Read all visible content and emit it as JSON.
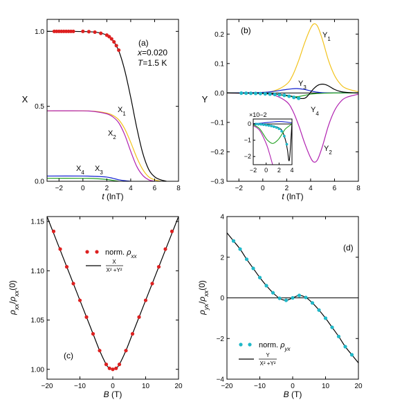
{
  "chart_data": [
    {
      "panel": "(a)",
      "type": "line",
      "xlabel": "t (lnT)",
      "ylabel": "X",
      "xlim": [
        -3,
        8
      ],
      "ylim": [
        0,
        1.08
      ],
      "xticks": [
        -2,
        0,
        2,
        4,
        6,
        8
      ],
      "yticks": [
        0.0,
        0.5,
        1.0
      ],
      "annotations": [
        "x=0.020",
        "T=1.5 K"
      ],
      "series": [
        {
          "name": "X",
          "color": "#000000",
          "x": [
            -3,
            -1,
            1,
            2,
            2.5,
            3,
            3.5,
            4,
            4.5,
            5,
            5.5,
            6,
            6.5,
            7
          ],
          "y": [
            1.0,
            1.0,
            0.995,
            0.975,
            0.94,
            0.87,
            0.74,
            0.56,
            0.36,
            0.19,
            0.08,
            0.03,
            0.01,
            0.0
          ]
        },
        {
          "name": "X1",
          "color": "#f2c21a",
          "x": [
            -3,
            0,
            1,
            2,
            2.5,
            3,
            3.5,
            4,
            4.5,
            5,
            5.5,
            6,
            6.5
          ],
          "y": [
            0.47,
            0.47,
            0.467,
            0.455,
            0.44,
            0.41,
            0.35,
            0.26,
            0.16,
            0.08,
            0.03,
            0.01,
            0.0
          ]
        },
        {
          "name": "X2",
          "color": "#b020b0",
          "x": [
            -3,
            0,
            1,
            2,
            2.5,
            3,
            3.5,
            4,
            4.5,
            5,
            5.5,
            6
          ],
          "y": [
            0.47,
            0.47,
            0.465,
            0.45,
            0.43,
            0.39,
            0.31,
            0.2,
            0.1,
            0.04,
            0.01,
            0.0
          ]
        },
        {
          "name": "X3",
          "color": "#1020d0",
          "x": [
            -3,
            0,
            1,
            2,
            2.5,
            3,
            3.5,
            4
          ],
          "y": [
            0.035,
            0.035,
            0.033,
            0.028,
            0.02,
            0.01,
            0.004,
            0.0
          ]
        },
        {
          "name": "X4",
          "color": "#20a020",
          "x": [
            -3,
            0,
            1,
            2,
            2.5,
            3
          ],
          "y": [
            0.02,
            0.02,
            0.018,
            0.012,
            0.006,
            0.0
          ]
        }
      ],
      "points": {
        "name": "data",
        "color": "#dd2020",
        "x": [
          -2.4,
          -2.2,
          -2.0,
          -1.8,
          -1.6,
          -1.4,
          -1.2,
          -1.0,
          -0.8,
          0.0,
          0.5,
          1.0,
          1.5,
          2.0,
          2.2,
          2.4,
          2.6,
          2.8,
          3.0
        ],
        "y": [
          1.0,
          1.0,
          1.0,
          1.0,
          1.0,
          1.0,
          1.0,
          1.0,
          1.0,
          1.0,
          0.998,
          0.995,
          0.987,
          0.975,
          0.965,
          0.95,
          0.93,
          0.905,
          0.875
        ]
      },
      "labels": {
        "X1": "X1",
        "X2": "X2",
        "X3": "X3",
        "X4": "X4"
      }
    },
    {
      "panel": "(b)",
      "type": "line",
      "xlabel": "t (lnT)",
      "ylabel": "Y",
      "xlim": [
        -3,
        8
      ],
      "ylim": [
        -0.3,
        0.25
      ],
      "xticks": [
        -2,
        0,
        2,
        4,
        6,
        8
      ],
      "yticks": [
        -0.3,
        -0.2,
        -0.1,
        0.0,
        0.1,
        0.2
      ],
      "series": [
        {
          "name": "Y1",
          "color": "#f2c21a",
          "x": [
            -3,
            0,
            1,
            2,
            2.5,
            3,
            3.5,
            4,
            4.3,
            4.6,
            5,
            5.5,
            6,
            6.5,
            7,
            8
          ],
          "y": [
            0,
            0.002,
            0.008,
            0.03,
            0.06,
            0.11,
            0.17,
            0.22,
            0.235,
            0.225,
            0.18,
            0.11,
            0.06,
            0.03,
            0.015,
            0.004
          ]
        },
        {
          "name": "Y2",
          "color": "#b020b0",
          "x": [
            -3,
            0,
            1,
            2,
            2.5,
            3,
            3.5,
            4,
            4.3,
            4.6,
            5,
            5.5,
            6,
            6.5,
            7,
            8
          ],
          "y": [
            0,
            -0.002,
            -0.008,
            -0.03,
            -0.06,
            -0.11,
            -0.17,
            -0.22,
            -0.235,
            -0.225,
            -0.18,
            -0.11,
            -0.06,
            -0.03,
            -0.015,
            -0.004
          ]
        },
        {
          "name": "Y3",
          "color": "#1020d0",
          "x": [
            -3,
            0,
            1,
            2,
            2.8,
            3.5,
            4,
            4.5,
            5,
            6,
            7,
            8
          ],
          "y": [
            0,
            0.002,
            0.006,
            0.012,
            0.015,
            0.012,
            0.007,
            0.003,
            0.001,
            0,
            0,
            0
          ]
        },
        {
          "name": "Y4",
          "color": "#20a020",
          "x": [
            -3,
            0,
            1,
            2,
            2.5,
            3,
            3.5,
            4,
            4.5,
            5,
            6,
            8
          ],
          "y": [
            0,
            -0.001,
            -0.004,
            -0.01,
            -0.013,
            -0.012,
            -0.008,
            -0.004,
            -0.002,
            -0.001,
            0,
            0
          ]
        },
        {
          "name": "Y",
          "color": "#000000",
          "x": [
            -3,
            -1,
            0,
            1,
            1.5,
            2,
            2.5,
            3,
            3.5,
            3.8,
            4.2,
            4.6,
            5,
            5.4,
            6,
            6.5,
            7,
            8
          ],
          "y": [
            0,
            -0.001,
            -0.002,
            -0.004,
            -0.006,
            -0.008,
            -0.012,
            -0.018,
            -0.018,
            -0.008,
            0.012,
            0.026,
            0.03,
            0.026,
            0.012,
            0.005,
            0.002,
            0
          ]
        }
      ],
      "points": {
        "name": "data",
        "color": "#20b8c8",
        "x": [
          -1.8,
          -1.4,
          -1.0,
          -0.6,
          -0.2,
          0.2,
          0.6,
          1.0,
          1.4,
          1.8,
          2.2,
          2.6,
          3.0
        ],
        "y": [
          -0.0005,
          -0.0008,
          -0.001,
          -0.0015,
          -0.002,
          -0.003,
          -0.004,
          -0.005,
          -0.006,
          -0.008,
          -0.011,
          -0.015,
          -0.018
        ]
      },
      "inset": {
        "multiplier": "×10−2",
        "xlim": [
          -2,
          4
        ],
        "ylim": [
          -2.5,
          0.3
        ],
        "xticks": [
          -2,
          0,
          2,
          4
        ],
        "yticks": [
          -2,
          -1,
          0
        ],
        "series": [
          {
            "name": "Y",
            "color": "#000000",
            "x": [
              -2,
              -1,
              0,
              1,
              2,
              2.5,
              3,
              3.3,
              3.6,
              4
            ],
            "y": [
              0,
              -0.02,
              -0.05,
              -0.12,
              -0.25,
              -0.45,
              -1.0,
              -1.6,
              -2.2,
              0.1
            ]
          },
          {
            "name": "Y4",
            "color": "#20a020",
            "x": [
              -2,
              -1,
              0,
              0.5,
              1,
              1.5,
              2,
              2.5,
              3,
              4
            ],
            "y": [
              -0.05,
              -0.3,
              -0.9,
              -1.1,
              -1.2,
              -1.1,
              -0.9,
              -0.6,
              -0.3,
              0
            ]
          },
          {
            "name": "Y2",
            "color": "#b020b0",
            "x": [
              -2,
              -1,
              0,
              0.5,
              1
            ],
            "y": [
              -0.1,
              -0.4,
              -1.2,
              -1.8,
              -2.5
            ]
          },
          {
            "name": "Y3",
            "color": "#1020d0",
            "x": [
              -2,
              -1,
              0,
              1,
              2,
              3,
              4
            ],
            "y": [
              0.02,
              0.04,
              0.08,
              0.12,
              0.15,
              0.12,
              0.06
            ]
          }
        ],
        "points": {
          "color": "#20b8c8",
          "x": [
            -1.6,
            -1.2,
            -0.8,
            -0.4,
            0,
            0.4,
            0.8,
            1.2,
            1.6,
            2.0,
            2.4,
            2.8,
            3.2
          ],
          "y": [
            -0.01,
            -0.02,
            -0.03,
            -0.05,
            -0.07,
            -0.1,
            -0.13,
            -0.17,
            -0.22,
            -0.3,
            -0.45,
            -0.75,
            -1.25
          ]
        }
      },
      "labels": {
        "Y1": "Y1",
        "Y2": "Y2",
        "Y3": "Y3",
        "Y4": "Y4"
      }
    },
    {
      "panel": "(c)",
      "type": "line",
      "xlabel": "B (T)",
      "ylabel": "ρxx/ρxx(0)",
      "xlim": [
        -20,
        20
      ],
      "ylim": [
        0.99,
        1.155
      ],
      "xticks": [
        -20,
        -10,
        0,
        10,
        20
      ],
      "yticks": [
        1.0,
        1.05,
        1.1,
        1.15
      ],
      "legend": {
        "points": "norm. ρxx",
        "line": "X / (X² + Y²)"
      },
      "series": [
        {
          "name": "fit",
          "color": "#000000",
          "x": [
            -20,
            -18,
            -16,
            -14,
            -12,
            -10,
            -8,
            -6,
            -4,
            -2,
            -1,
            0,
            1,
            2,
            4,
            6,
            8,
            10,
            12,
            14,
            16,
            18,
            20
          ],
          "y": [
            1.155,
            1.138,
            1.121,
            1.104,
            1.087,
            1.07,
            1.053,
            1.036,
            1.019,
            1.005,
            1.001,
            1.0,
            1.001,
            1.005,
            1.019,
            1.036,
            1.053,
            1.07,
            1.087,
            1.104,
            1.121,
            1.138,
            1.155
          ]
        }
      ],
      "points": {
        "name": "norm. ρxx",
        "color": "#dd2020",
        "x": [
          -18,
          -16,
          -14,
          -12,
          -10,
          -8,
          -6,
          -4,
          -2,
          -1,
          0,
          1,
          2,
          4,
          6,
          8,
          10,
          12,
          14,
          16,
          18
        ],
        "y": [
          1.14,
          1.122,
          1.104,
          1.087,
          1.07,
          1.053,
          1.036,
          1.019,
          1.005,
          1.001,
          1.0,
          1.001,
          1.005,
          1.019,
          1.036,
          1.053,
          1.07,
          1.087,
          1.104,
          1.122,
          1.14
        ]
      }
    },
    {
      "panel": "(d)",
      "type": "line",
      "xlabel": "B (T)",
      "ylabel": "ρyx/ρxx(0)",
      "xlim": [
        -20,
        20
      ],
      "ylim": [
        -4,
        4
      ],
      "xticks": [
        -20,
        -10,
        0,
        10,
        20
      ],
      "yticks": [
        -4,
        -2,
        0,
        2,
        4
      ],
      "legend": {
        "points": "norm. ρyx",
        "line": "Y / (X² + Y²)"
      },
      "series": [
        {
          "name": "fit",
          "color": "#000000",
          "x": [
            -20,
            -18,
            -16,
            -14,
            -12,
            -10,
            -8,
            -6,
            -4,
            -2,
            0,
            2,
            4,
            6,
            8,
            10,
            12,
            14,
            16,
            18,
            20
          ],
          "y": [
            3.2,
            2.8,
            2.4,
            1.9,
            1.45,
            1.0,
            0.6,
            0.25,
            -0.02,
            -0.12,
            0.0,
            0.12,
            0.02,
            -0.25,
            -0.6,
            -1.0,
            -1.45,
            -1.9,
            -2.4,
            -2.8,
            -3.2
          ]
        }
      ],
      "points": {
        "name": "norm. ρyx",
        "color": "#20b8c8",
        "x": [
          -18,
          -16,
          -14,
          -12,
          -10,
          -8,
          -6,
          -4,
          -2,
          0,
          2,
          4,
          6,
          8,
          10,
          12,
          14,
          16,
          18
        ],
        "y": [
          2.8,
          2.4,
          1.9,
          1.45,
          1.0,
          0.6,
          0.25,
          -0.02,
          -0.12,
          0.0,
          0.12,
          0.02,
          -0.25,
          -0.6,
          -1.0,
          -1.45,
          -1.9,
          -2.4,
          -2.8
        ]
      }
    }
  ]
}
